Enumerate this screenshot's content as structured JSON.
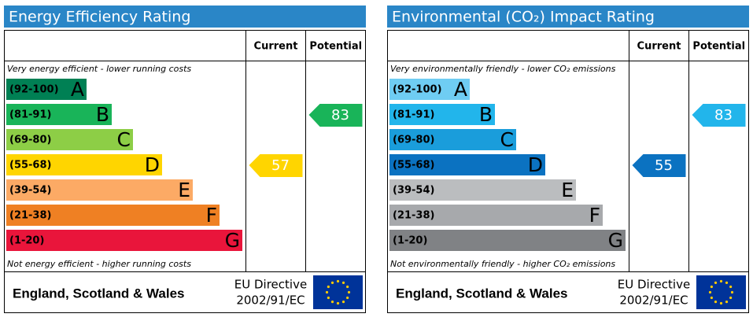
{
  "panels": [
    {
      "title": "Energy Efficiency Rating",
      "columns": [
        "Current",
        "Potential"
      ],
      "top_note": "Very energy efficient - lower running costs",
      "bottom_note": "Not energy efficient - higher running costs",
      "bands": [
        {
          "range": "(92-100)",
          "letter": "A",
          "color": "#008054"
        },
        {
          "range": "(81-91)",
          "letter": "B",
          "color": "#19b459"
        },
        {
          "range": "(69-80)",
          "letter": "C",
          "color": "#8dce46"
        },
        {
          "range": "(55-68)",
          "letter": "D",
          "color": "#ffd500"
        },
        {
          "range": "(39-54)",
          "letter": "E",
          "color": "#fcaa65"
        },
        {
          "range": "(21-38)",
          "letter": "F",
          "color": "#ef8023"
        },
        {
          "range": "(1-20)",
          "letter": "G",
          "color": "#e9153b"
        }
      ],
      "current": 57,
      "potential": 83,
      "footer": {
        "region": "England, Scotland & Wales",
        "directive": [
          "EU Directive",
          "2002/91/EC"
        ]
      }
    },
    {
      "title": "Environmental (CO₂) Impact Rating",
      "columns": [
        "Current",
        "Potential"
      ],
      "top_note": "Very environmentally friendly - lower CO₂ emissions",
      "bottom_note": "Not environmentally friendly - higher CO₂ emissions",
      "bands": [
        {
          "range": "(92-100)",
          "letter": "A",
          "color": "#6fcdf3"
        },
        {
          "range": "(81-91)",
          "letter": "B",
          "color": "#22b5eb"
        },
        {
          "range": "(69-80)",
          "letter": "C",
          "color": "#1a9ddb"
        },
        {
          "range": "(55-68)",
          "letter": "D",
          "color": "#0b72c1"
        },
        {
          "range": "(39-54)",
          "letter": "E",
          "color": "#bbbdbf"
        },
        {
          "range": "(21-38)",
          "letter": "F",
          "color": "#a7a9ac"
        },
        {
          "range": "(1-20)",
          "letter": "G",
          "color": "#808285"
        }
      ],
      "current": 55,
      "potential": 83,
      "footer": {
        "region": "England, Scotland & Wales",
        "directive": [
          "EU Directive",
          "2002/91/EC"
        ]
      }
    }
  ]
}
